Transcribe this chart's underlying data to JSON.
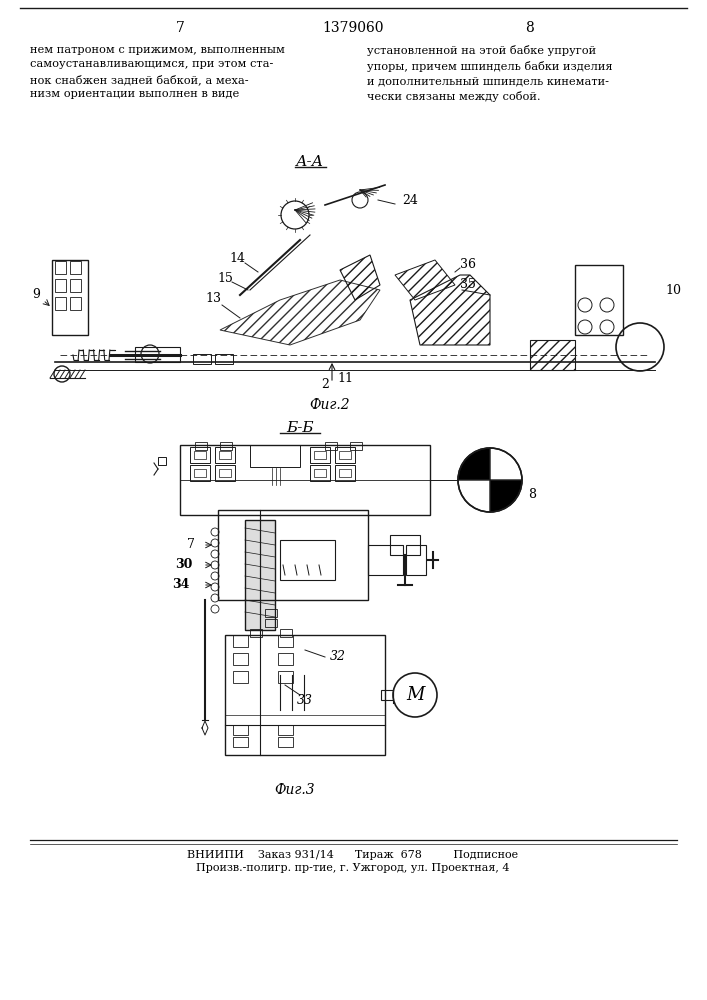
{
  "page_number_left": "7",
  "page_number_center": "1379060",
  "page_number_right": "8",
  "text_left": "нем патроном с прижимом, выполненным\nсамоустанавливающимся, при этом ста-\nнок снабжен задней бабкой, а меха-\nнизм ориентации выполнен в виде",
  "text_right": "установленной на этой бабке упругой\nупоры, причем шпиндель бабки изделия\nи дополнительный шпиндель кинемати-\nчески связаны между собой.",
  "fig2_label": "А-А",
  "fig2_caption": "Фиг.2",
  "fig3_label": "Б-Б",
  "fig3_caption": "Фиг.3",
  "bottom_line1": "ВНИИПИ    Заказ 931/14      Тираж  678         Подписное",
  "bottom_line2": "Произв.-полигр. пр-тие, г. Ужгород, ул. Проектная, 4",
  "bg_color": "#ffffff",
  "text_color": "#000000",
  "line_color": "#1a1a1a"
}
